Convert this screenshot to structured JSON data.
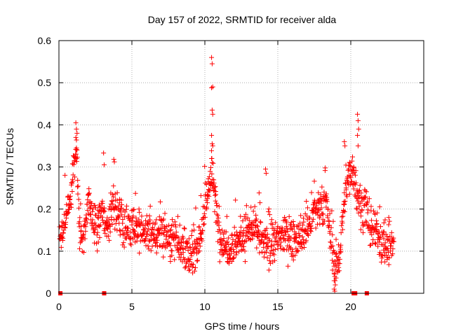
{
  "chart_data": {
    "type": "scatter",
    "title": "Day 157 of 2022, SRMTID for receiver alda",
    "xlabel": "GPS time / hours",
    "ylabel": "SRMTID / TECUs",
    "xlim": [
      0,
      25
    ],
    "ylim": [
      0,
      0.6
    ],
    "xticks": [
      0,
      5,
      10,
      15,
      20
    ],
    "yticks": [
      0,
      0.1,
      0.2,
      0.3,
      0.4,
      0.5,
      0.6
    ],
    "xtick_labels": [
      "0",
      "5",
      "10",
      "15",
      "20"
    ],
    "ytick_labels": [
      "0",
      "0.1",
      "0.2",
      "0.3",
      "0.4",
      "0.5",
      "0.6"
    ],
    "grid": true,
    "marker": "+",
    "colors": {
      "points": "#ff0000",
      "gap_markers": "#ff0000",
      "grid": "#a0a0a0",
      "axes": "#000000"
    },
    "series": [
      {
        "name": "SRMTID",
        "profile": [
          [
            0.0,
            0.13
          ],
          [
            0.3,
            0.15
          ],
          [
            0.5,
            0.2
          ],
          [
            0.8,
            0.22
          ],
          [
            1.0,
            0.3
          ],
          [
            1.2,
            0.34
          ],
          [
            1.4,
            0.15
          ],
          [
            1.7,
            0.13
          ],
          [
            2.0,
            0.22
          ],
          [
            2.3,
            0.18
          ],
          [
            2.6,
            0.15
          ],
          [
            3.0,
            0.2
          ],
          [
            3.3,
            0.14
          ],
          [
            3.7,
            0.22
          ],
          [
            4.0,
            0.19
          ],
          [
            4.5,
            0.15
          ],
          [
            5.0,
            0.17
          ],
          [
            5.5,
            0.14
          ],
          [
            6.0,
            0.15
          ],
          [
            6.5,
            0.13
          ],
          [
            7.0,
            0.15
          ],
          [
            7.5,
            0.13
          ],
          [
            8.0,
            0.14
          ],
          [
            8.5,
            0.1
          ],
          [
            9.0,
            0.08
          ],
          [
            9.3,
            0.1
          ],
          [
            9.7,
            0.14
          ],
          [
            10.0,
            0.19
          ],
          [
            10.3,
            0.27
          ],
          [
            10.6,
            0.26
          ],
          [
            10.9,
            0.16
          ],
          [
            11.2,
            0.12
          ],
          [
            11.6,
            0.11
          ],
          [
            12.0,
            0.12
          ],
          [
            12.5,
            0.13
          ],
          [
            13.0,
            0.15
          ],
          [
            13.5,
            0.15
          ],
          [
            14.0,
            0.12
          ],
          [
            14.5,
            0.11
          ],
          [
            15.0,
            0.13
          ],
          [
            15.5,
            0.14
          ],
          [
            16.0,
            0.13
          ],
          [
            16.5,
            0.13
          ],
          [
            17.0,
            0.15
          ],
          [
            17.5,
            0.19
          ],
          [
            18.0,
            0.2
          ],
          [
            18.3,
            0.22
          ],
          [
            18.6,
            0.14
          ],
          [
            18.9,
            0.06
          ],
          [
            19.2,
            0.08
          ],
          [
            19.5,
            0.2
          ],
          [
            19.8,
            0.27
          ],
          [
            20.1,
            0.3
          ],
          [
            20.4,
            0.25
          ],
          [
            20.7,
            0.2
          ],
          [
            21.0,
            0.21
          ],
          [
            21.3,
            0.14
          ],
          [
            21.6,
            0.15
          ],
          [
            21.9,
            0.14
          ],
          [
            22.2,
            0.12
          ],
          [
            22.5,
            0.11
          ],
          [
            22.8,
            0.11
          ]
        ],
        "point_count": 1400,
        "x_range": [
          0.05,
          22.95
        ],
        "spread": 0.045,
        "seed": 157,
        "spikes": [
          {
            "x": 10.5,
            "values": [
              0.56,
              0.545,
              0.49,
              0.488,
              0.435,
              0.425,
              0.375,
              0.355,
              0.35,
              0.32,
              0.31
            ]
          },
          {
            "x": 1.2,
            "values": [
              0.405,
              0.39,
              0.38,
              0.37,
              0.345,
              0.34,
              0.32
            ]
          },
          {
            "x": 20.5,
            "values": [
              0.425,
              0.41,
              0.39,
              0.375,
              0.35
            ]
          },
          {
            "x": 3.1,
            "values": [
              0.333,
              0.305
            ]
          },
          {
            "x": 3.8,
            "values": [
              0.318,
              0.312
            ]
          },
          {
            "x": 14.2,
            "values": [
              0.295,
              0.285
            ]
          },
          {
            "x": 19.6,
            "values": [
              0.36,
              0.35
            ]
          },
          {
            "x": 18.9,
            "values": [
              0.01,
              0.005,
              0.02,
              0.03,
              0.04
            ]
          }
        ]
      }
    ],
    "gap_markers": {
      "x": [
        0.1,
        3.1,
        20.2,
        20.3,
        21.1
      ],
      "y": 0
    }
  }
}
